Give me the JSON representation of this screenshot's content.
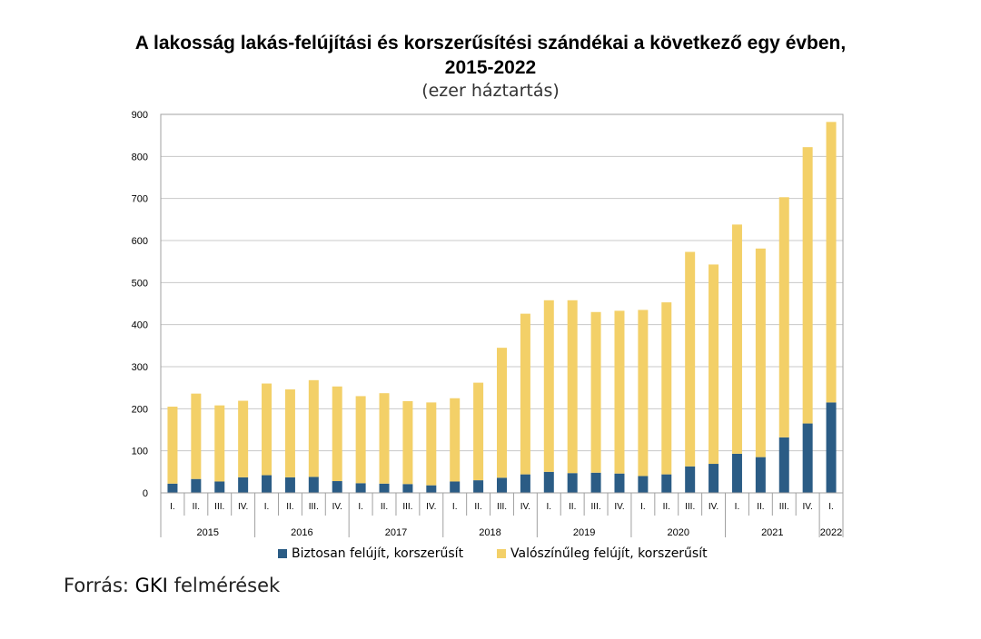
{
  "chart_data": {
    "type": "stacked-bar",
    "title_line1": "A lakosság lakás-felújítási és korszerűsítési szándékai a következő egy évben,",
    "title_line2": "2015-2022",
    "subtitle": "(ezer háztartás)",
    "ylim": [
      0,
      900
    ],
    "yticks": [
      0,
      100,
      200,
      300,
      400,
      500,
      600,
      700,
      800,
      900
    ],
    "grid": true,
    "legend_position": "bottom",
    "quarters": [
      "I.",
      "II.",
      "III.",
      "IV.",
      "I.",
      "II.",
      "III.",
      "IV.",
      "I.",
      "II.",
      "III.",
      "IV.",
      "I.",
      "II.",
      "III.",
      "IV.",
      "I.",
      "II.",
      "III.",
      "IV.",
      "I.",
      "II.",
      "III.",
      "IV.",
      "I.",
      "II.",
      "III.",
      "IV.",
      "I."
    ],
    "years": [
      {
        "label": "2015",
        "count": 4
      },
      {
        "label": "2016",
        "count": 4
      },
      {
        "label": "2017",
        "count": 4
      },
      {
        "label": "2018",
        "count": 4
      },
      {
        "label": "2019",
        "count": 4
      },
      {
        "label": "2020",
        "count": 4
      },
      {
        "label": "2021",
        "count": 4
      },
      {
        "label": "2022",
        "count": 1
      }
    ],
    "series": [
      {
        "name": "Biztosan felújít, korszerűsít",
        "color": "#2b5c85",
        "values": [
          22,
          33,
          27,
          37,
          42,
          37,
          38,
          28,
          23,
          22,
          21,
          18,
          27,
          30,
          36,
          44,
          50,
          47,
          48,
          46,
          40,
          44,
          63,
          69,
          93,
          85,
          132,
          165,
          215
        ]
      },
      {
        "name": "Valószínűleg felújít, korszerűsít",
        "color": "#f3d068",
        "values": [
          183,
          203,
          181,
          182,
          218,
          209,
          230,
          225,
          207,
          215,
          197,
          197,
          198,
          232,
          309,
          382,
          408,
          411,
          382,
          387,
          395,
          409,
          510,
          474,
          545,
          496,
          571,
          657,
          667
        ]
      }
    ]
  },
  "source": {
    "prefix": "Forrás: ",
    "org": "GKI",
    "suffix": " felmérések"
  }
}
